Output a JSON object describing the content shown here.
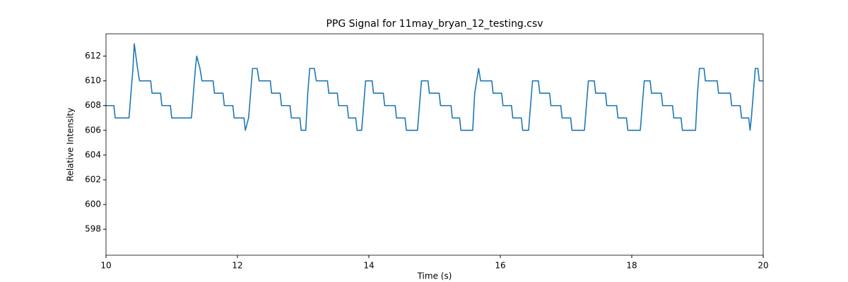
{
  "chart_data": {
    "type": "line",
    "title": "PPG Signal for 11may_bryan_12_testing.csv",
    "xlabel": "Time (s)",
    "ylabel": "Relative Intensity",
    "xlim": [
      10,
      20
    ],
    "ylim": [
      595.9,
      613.8
    ],
    "xticks": [
      10,
      12,
      14,
      16,
      18,
      20
    ],
    "yticks": [
      598,
      600,
      602,
      604,
      606,
      608,
      610,
      612
    ],
    "series": [
      {
        "color": "#1f77b4",
        "x": [
          10.0,
          10.12,
          10.14,
          10.35,
          10.38,
          10.41,
          10.43,
          10.48,
          10.51,
          10.68,
          10.7,
          10.83,
          10.85,
          10.98,
          11.0,
          11.3,
          11.33,
          11.36,
          11.38,
          11.43,
          11.46,
          11.63,
          11.65,
          11.78,
          11.8,
          11.93,
          11.95,
          12.1,
          12.12,
          12.17,
          12.2,
          12.23,
          12.3,
          12.33,
          12.5,
          12.52,
          12.65,
          12.67,
          12.8,
          12.82,
          12.95,
          12.97,
          13.04,
          13.07,
          13.1,
          13.17,
          13.2,
          13.37,
          13.39,
          13.52,
          13.54,
          13.67,
          13.69,
          13.8,
          13.82,
          13.89,
          13.92,
          13.95,
          14.05,
          14.07,
          14.22,
          14.24,
          14.4,
          14.42,
          14.55,
          14.57,
          14.74,
          14.77,
          14.8,
          14.9,
          14.92,
          15.07,
          15.09,
          15.25,
          15.27,
          15.38,
          15.4,
          15.58,
          15.61,
          15.64,
          15.67,
          15.7,
          15.87,
          15.89,
          16.02,
          16.04,
          16.17,
          16.19,
          16.32,
          16.34,
          16.43,
          16.46,
          16.49,
          16.58,
          16.6,
          16.75,
          16.77,
          16.92,
          16.94,
          17.07,
          17.09,
          17.28,
          17.31,
          17.34,
          17.43,
          17.45,
          17.6,
          17.62,
          17.77,
          17.79,
          17.92,
          17.94,
          18.13,
          18.16,
          18.19,
          18.28,
          18.3,
          18.45,
          18.47,
          18.62,
          18.64,
          18.75,
          18.77,
          18.97,
          19.0,
          19.03,
          19.1,
          19.12,
          19.3,
          19.32,
          19.5,
          19.52,
          19.65,
          19.67,
          19.78,
          19.8,
          19.82,
          19.85,
          19.88,
          19.92,
          19.94,
          20.0
        ],
        "values": [
          608,
          608,
          607,
          607,
          609,
          611,
          613,
          611,
          610,
          610,
          609,
          609,
          608,
          608,
          607,
          607,
          609,
          611,
          612,
          611,
          610,
          610,
          609,
          609,
          608,
          608,
          607,
          607,
          606,
          607,
          609,
          611,
          611,
          610,
          610,
          609,
          609,
          608,
          608,
          607,
          607,
          606,
          606,
          609,
          611,
          611,
          610,
          610,
          609,
          609,
          608,
          608,
          607,
          607,
          606,
          606,
          608,
          610,
          610,
          609,
          609,
          608,
          608,
          607,
          607,
          606,
          606,
          608,
          610,
          610,
          609,
          609,
          608,
          608,
          607,
          607,
          606,
          606,
          609,
          610,
          611,
          610,
          610,
          609,
          609,
          608,
          608,
          607,
          607,
          606,
          606,
          608,
          610,
          610,
          609,
          609,
          608,
          608,
          607,
          607,
          606,
          606,
          608,
          610,
          610,
          609,
          609,
          608,
          608,
          607,
          607,
          606,
          606,
          608,
          610,
          610,
          609,
          609,
          608,
          608,
          607,
          607,
          606,
          606,
          609,
          611,
          611,
          610,
          610,
          609,
          609,
          608,
          608,
          607,
          607,
          606,
          607,
          609,
          611,
          611,
          610,
          610
        ]
      }
    ]
  }
}
